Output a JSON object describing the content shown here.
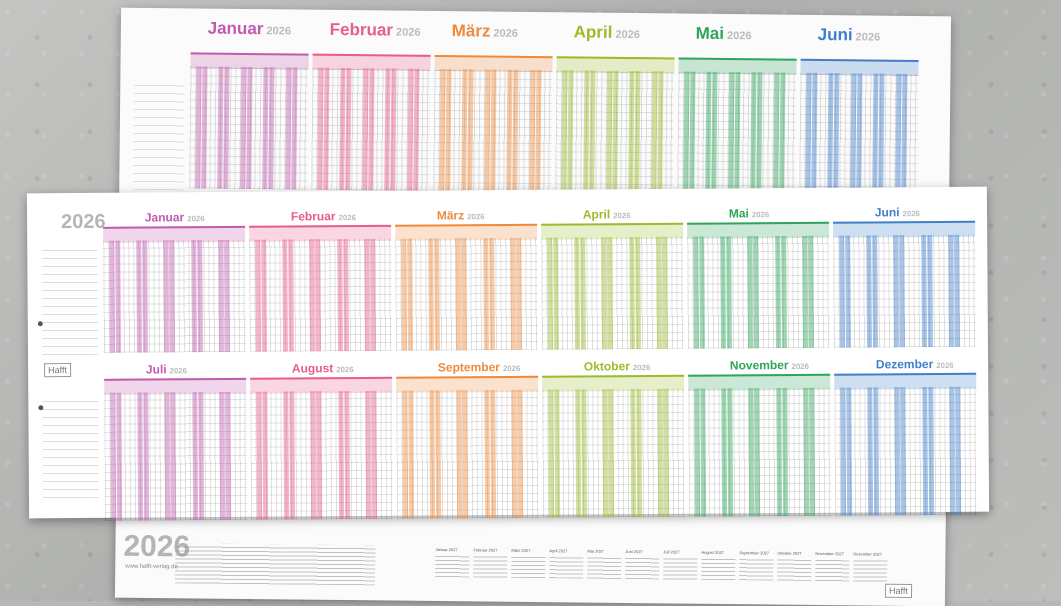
{
  "year": "2026",
  "brand_logo": "Hafft",
  "website": "www.hafft-verlag.de",
  "colors": {
    "jan": "#c15bb0",
    "feb": "#e85c88",
    "mar": "#ef8a3a",
    "apr": "#9cbb2a",
    "mai": "#2ea55a",
    "jun": "#3f7fcb",
    "jul": "#c15bb0",
    "aug": "#e85c88",
    "sep": "#ef8a3a",
    "okt": "#9cbb2a",
    "nov": "#2ea55a",
    "dez": "#3f7fcb"
  },
  "back_sheet": {
    "months": [
      {
        "name": "Januar",
        "year": "2026"
      },
      {
        "name": "Februar",
        "year": "2026"
      },
      {
        "name": "März",
        "year": "2026"
      },
      {
        "name": "April",
        "year": "2026"
      },
      {
        "name": "Mai",
        "year": "2026"
      },
      {
        "name": "Juni",
        "year": "2026"
      }
    ]
  },
  "front_sheet": {
    "row1": [
      {
        "name": "Januar",
        "year": "2026"
      },
      {
        "name": "Februar",
        "year": "2026"
      },
      {
        "name": "März",
        "year": "2026"
      },
      {
        "name": "April",
        "year": "2026"
      },
      {
        "name": "Mai",
        "year": "2026"
      },
      {
        "name": "Juni",
        "year": "2026"
      }
    ],
    "row2": [
      {
        "name": "Juli",
        "year": "2026"
      },
      {
        "name": "August",
        "year": "2026"
      },
      {
        "name": "September",
        "year": "2026"
      },
      {
        "name": "Oktober",
        "year": "2026"
      },
      {
        "name": "November",
        "year": "2026"
      },
      {
        "name": "Dezember",
        "year": "2026"
      }
    ]
  },
  "bottom_strip": {
    "mini_months": [
      "Januar 2027",
      "Februar 2027",
      "März 2027",
      "April 2027",
      "Mai 2027",
      "Juni 2027",
      "Juli 2027",
      "August 2027",
      "September 2027",
      "Oktober 2027",
      "November 2027",
      "Dezember 2027"
    ]
  }
}
